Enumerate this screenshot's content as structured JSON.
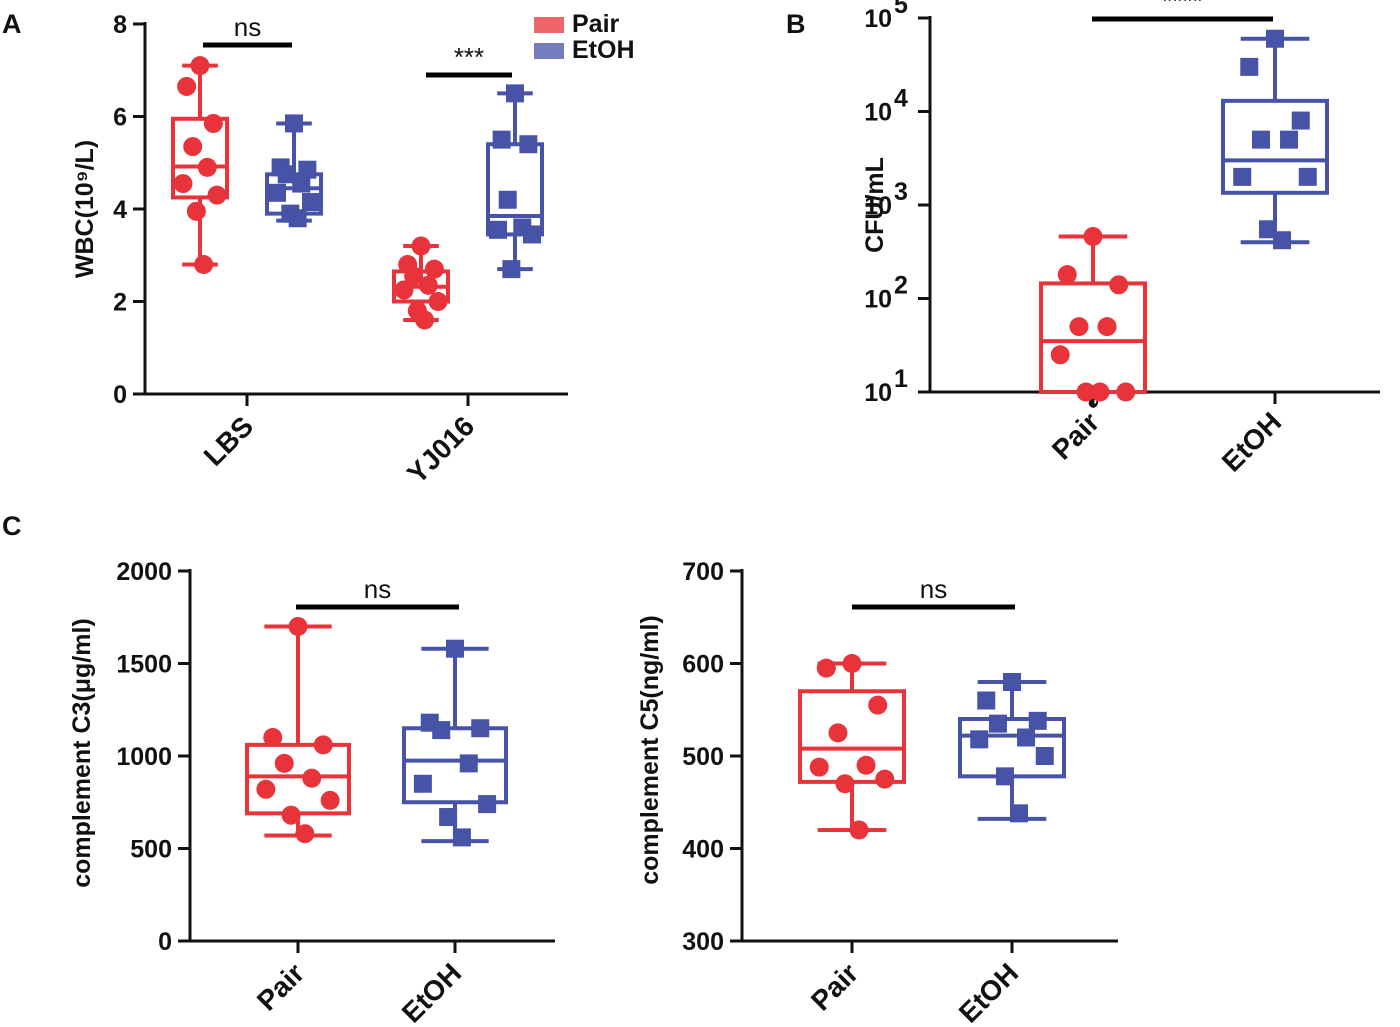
{
  "colors": {
    "pair": "#e8333a",
    "etoh": "#4653a6",
    "axis": "#111111"
  },
  "chart_data": [
    {
      "id": "A",
      "type": "box",
      "panel_label": "A",
      "ylabel": "WBC(10⁹/L)",
      "ylim": [
        0,
        8
      ],
      "yticks": [
        "0",
        "2",
        "4",
        "6",
        "8"
      ],
      "categories": [
        "LBS",
        "YJ016"
      ],
      "legend": [
        "Pair",
        "EtOH"
      ],
      "series": [
        {
          "name": "Pair",
          "marker": "circle",
          "boxes": [
            {
              "min": 2.8,
              "q1": 4.25,
              "median": 4.92,
              "q3": 5.95,
              "max": 7.1,
              "points": [
                7.1,
                6.65,
                5.85,
                5.35,
                4.9,
                4.55,
                4.3,
                3.95,
                2.8
              ]
            },
            {
              "min": 1.6,
              "q1": 2.0,
              "median": 2.32,
              "q3": 2.65,
              "max": 3.2,
              "points": [
                3.2,
                2.8,
                2.7,
                2.55,
                2.35,
                2.25,
                2.0,
                1.8,
                1.6
              ]
            }
          ]
        },
        {
          "name": "EtOH",
          "marker": "square",
          "boxes": [
            {
              "min": 3.75,
              "q1": 3.9,
              "median": 4.45,
              "q3": 4.75,
              "max": 5.85,
              "points": [
                5.85,
                4.9,
                4.85,
                4.75,
                4.55,
                4.35,
                4.15,
                3.9,
                3.8
              ]
            },
            {
              "min": 2.7,
              "q1": 3.45,
              "median": 3.85,
              "q3": 5.4,
              "max": 6.5,
              "points": [
                6.5,
                5.5,
                5.4,
                4.2,
                3.6,
                3.55,
                3.45,
                2.7
              ]
            }
          ]
        }
      ],
      "annotations": [
        {
          "text": "ns",
          "category": "LBS"
        },
        {
          "text": "***",
          "category": "YJ016"
        }
      ]
    },
    {
      "id": "B",
      "type": "box",
      "panel_label": "B",
      "ylabel": "CFU/mL",
      "yscale": "log",
      "ylim": [
        10,
        100000
      ],
      "yticks": [
        {
          "base": "10",
          "exp": "1"
        },
        {
          "base": "10",
          "exp": "2"
        },
        {
          "base": "10",
          "exp": "3"
        },
        {
          "base": "10",
          "exp": "4"
        },
        {
          "base": "10",
          "exp": "5"
        }
      ],
      "categories": [
        {
          "name": "Pair",
          "sup": "a"
        },
        {
          "name": "EtOH",
          "sup": ""
        }
      ],
      "series": [
        {
          "name": "Pair",
          "marker": "circle",
          "box": {
            "min": 10,
            "q1": 10,
            "median": 35,
            "q3": 145,
            "max": 460,
            "points": [
              460,
              180,
              140,
              50,
              50,
              25,
              10,
              10,
              10
            ]
          }
        },
        {
          "name": "EtOH",
          "marker": "square",
          "box": {
            "min": 400,
            "q1": 1350,
            "median": 3000,
            "q3": 13000,
            "max": 60000,
            "points": [
              60000,
              30000,
              8000,
              5000,
              5000,
              2000,
              2000,
              550,
              420
            ]
          }
        }
      ],
      "annotations": [
        {
          "text": "****"
        }
      ]
    },
    {
      "id": "C1",
      "type": "box",
      "panel_label": "C",
      "ylabel": "complement C3(μg/ml)",
      "ylim": [
        0,
        2000
      ],
      "yticks": [
        "0",
        "500",
        "1000",
        "1500",
        "2000"
      ],
      "categories": [
        "Pair",
        "EtOH"
      ],
      "series": [
        {
          "name": "Pair",
          "marker": "circle",
          "box": {
            "min": 570,
            "q1": 690,
            "median": 890,
            "q3": 1060,
            "max": 1700,
            "points": [
              1700,
              1100,
              1060,
              960,
              880,
              820,
              760,
              680,
              580
            ]
          }
        },
        {
          "name": "EtOH",
          "marker": "square",
          "box": {
            "min": 540,
            "q1": 750,
            "median": 975,
            "q3": 1150,
            "max": 1580,
            "points": [
              1580,
              1180,
              1150,
              1140,
              960,
              850,
              740,
              670,
              560
            ]
          }
        }
      ],
      "annotations": [
        {
          "text": "ns"
        }
      ]
    },
    {
      "id": "C2",
      "type": "box",
      "panel_label": "",
      "ylabel": "complement C5(ng/ml)",
      "ylim": [
        300,
        700
      ],
      "yticks": [
        "300",
        "400",
        "500",
        "600",
        "700"
      ],
      "categories": [
        "Pair",
        "EtOH"
      ],
      "series": [
        {
          "name": "Pair",
          "marker": "circle",
          "box": {
            "min": 420,
            "q1": 472,
            "median": 508,
            "q3": 570,
            "max": 600,
            "points": [
              600,
              595,
              555,
              525,
              490,
              488,
              475,
              470,
              420
            ]
          }
        },
        {
          "name": "EtOH",
          "marker": "square",
          "box": {
            "min": 432,
            "q1": 478,
            "median": 522,
            "q3": 540,
            "max": 580,
            "points": [
              580,
              560,
              538,
              535,
              520,
              518,
              500,
              478,
              438
            ]
          }
        }
      ],
      "annotations": [
        {
          "text": "ns"
        }
      ]
    }
  ]
}
